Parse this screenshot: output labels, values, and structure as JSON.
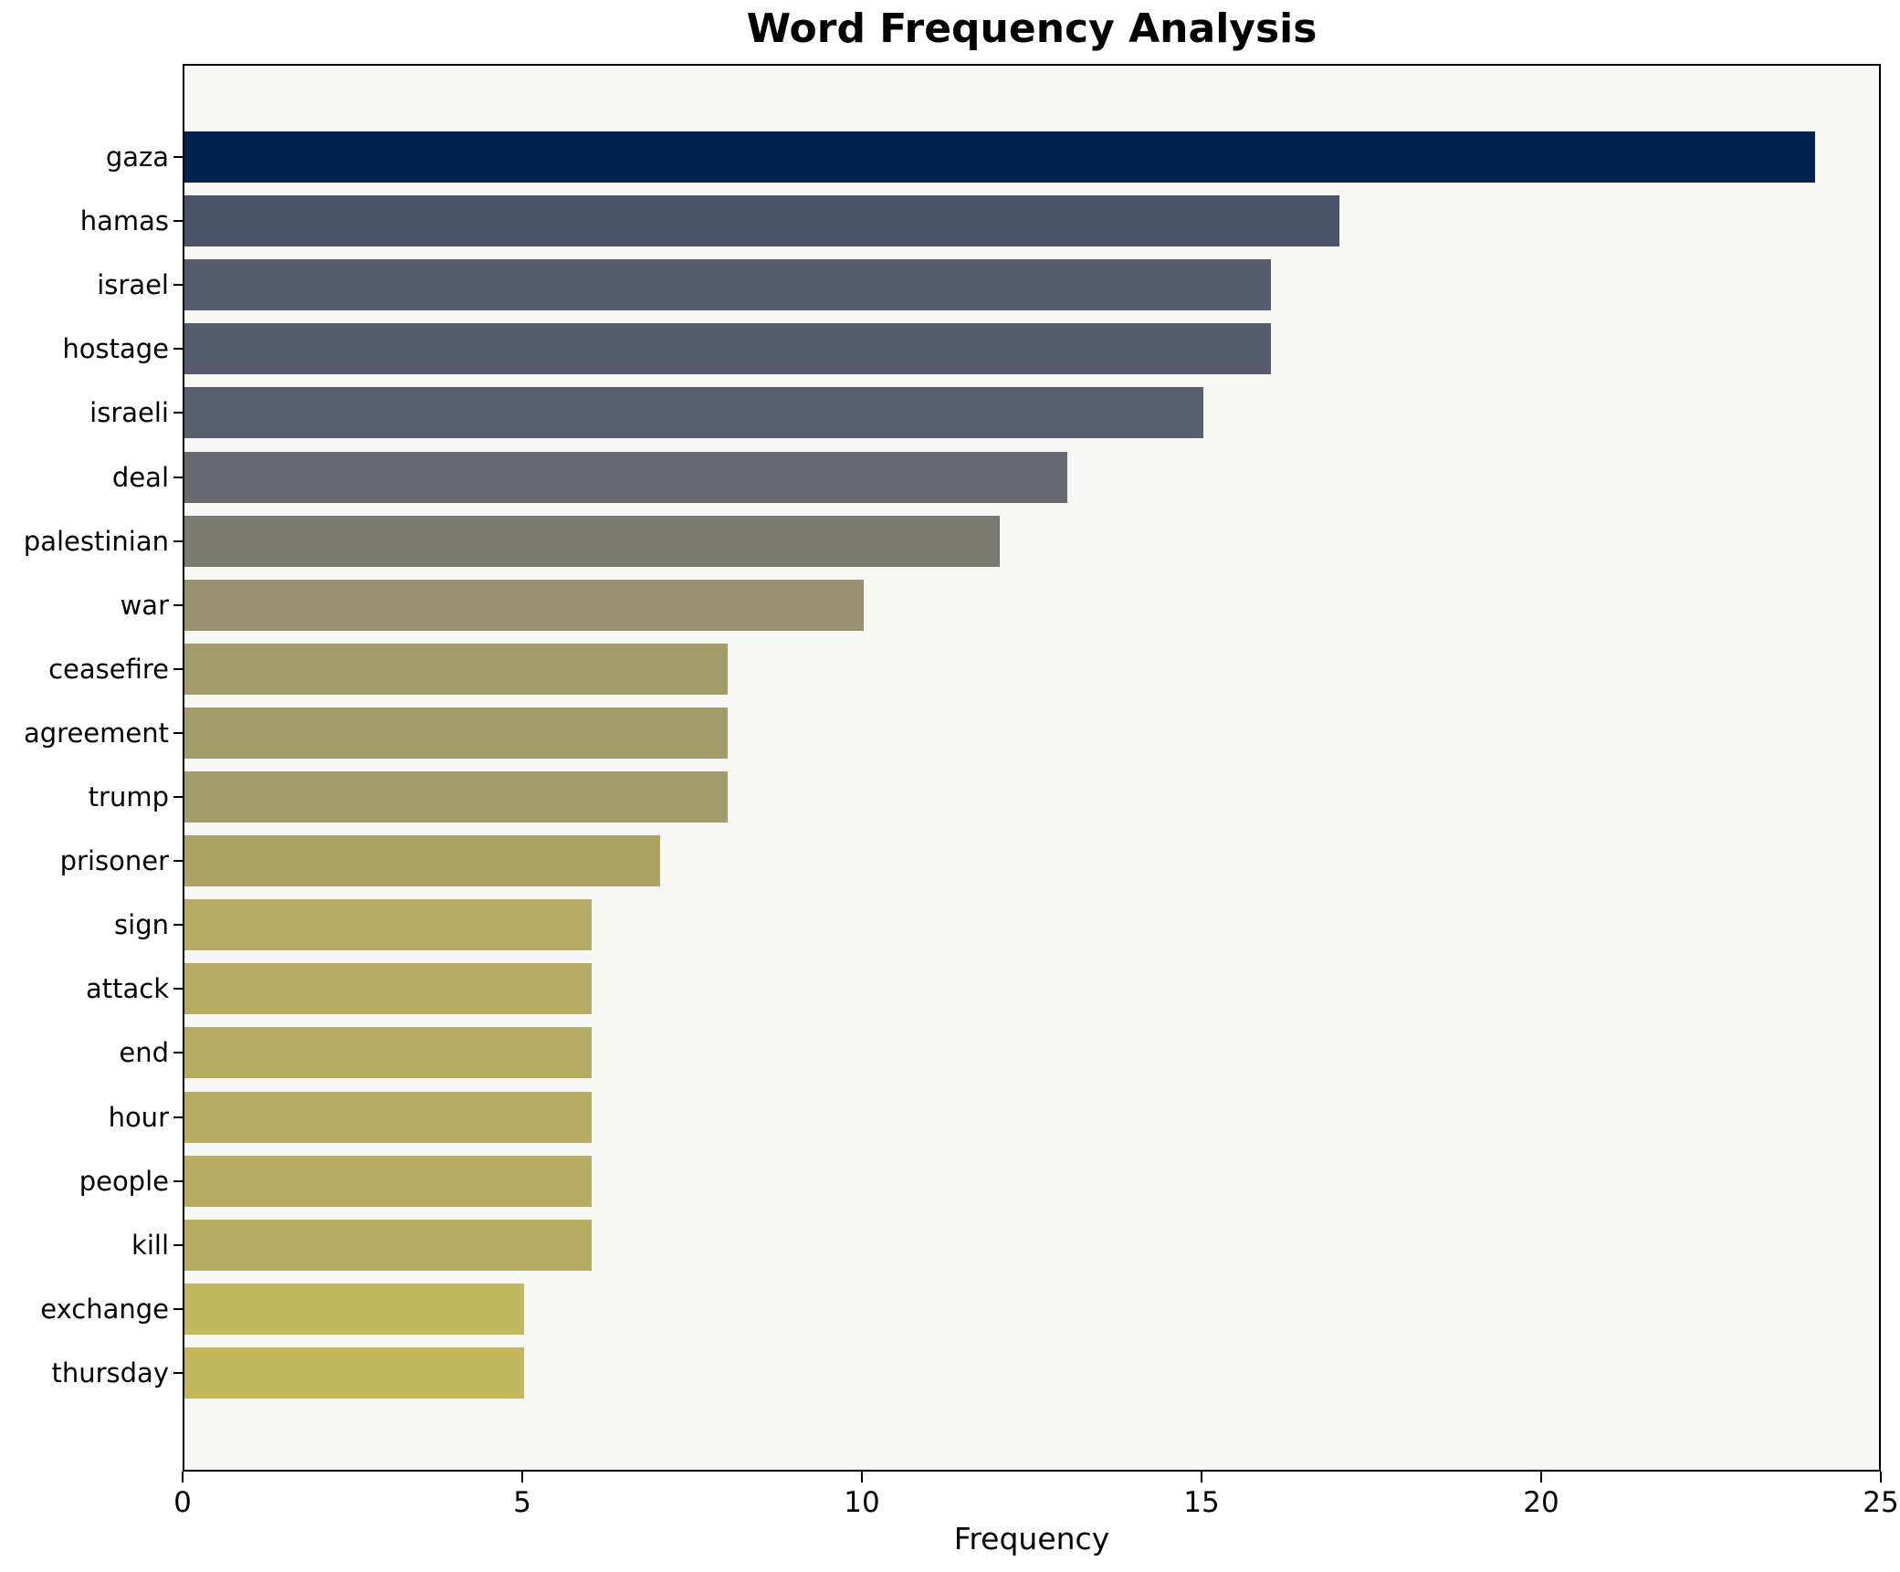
{
  "title": "Word Frequency Analysis",
  "chart_data": {
    "type": "bar",
    "orientation": "horizontal",
    "title": "Word Frequency Analysis",
    "xlabel": "Frequency",
    "ylabel": "",
    "categories": [
      "gaza",
      "hamas",
      "israel",
      "hostage",
      "israeli",
      "deal",
      "palestinian",
      "war",
      "ceasefire",
      "agreement",
      "trump",
      "prisoner",
      "sign",
      "attack",
      "end",
      "hour",
      "people",
      "kill",
      "exchange",
      "thursday"
    ],
    "values": [
      24,
      17,
      16,
      16,
      15,
      13,
      12,
      10,
      8,
      8,
      8,
      7,
      6,
      6,
      6,
      6,
      6,
      6,
      5,
      5
    ],
    "bar_colors": [
      "#00234f",
      "#4b5269",
      "#565c6e",
      "#565c6e",
      "#5a5f70",
      "#696a6f",
      "#7b7a72",
      "#989071",
      "#a59c6b",
      "#a59c6b",
      "#a59c6b",
      "#aca267",
      "#b6ab62",
      "#b6ab62",
      "#b6ab62",
      "#b7ac62",
      "#b7ac62",
      "#b7ac62",
      "#c4b65f",
      "#c4b65f"
    ],
    "xlim": [
      0,
      25
    ],
    "xticks": [
      "0",
      "5",
      "10",
      "15",
      "20",
      "25"
    ],
    "grid": false,
    "legend": null,
    "plot_background": "#f7f7f6",
    "figure_background": "#ffffff",
    "axis_color": "#000000"
  }
}
